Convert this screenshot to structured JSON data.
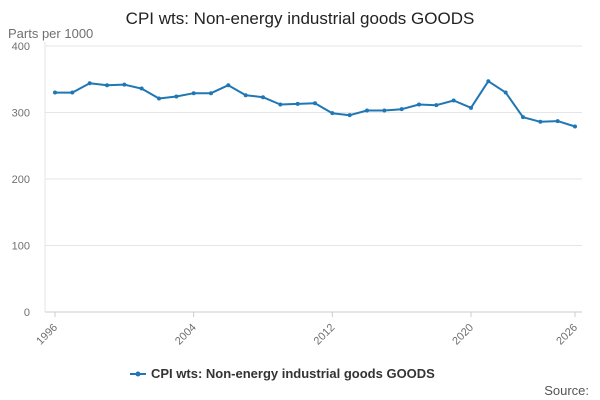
{
  "chart_data": {
    "type": "line",
    "title": "CPI wts: Non-energy industrial goods GOODS",
    "ylabel": "Parts per 1000",
    "xlabel": "",
    "xlim": [
      1996,
      2026
    ],
    "ylim": [
      0,
      400
    ],
    "y_ticks": [
      0,
      100,
      200,
      300,
      400
    ],
    "x_ticks": [
      1996,
      2004,
      2012,
      2020,
      2026
    ],
    "grid": true,
    "legend_position": "bottom-center",
    "source_label": "Source:",
    "colors": {
      "series": "#1f77b4",
      "grid": "#e6e6e6",
      "axis": "#cccccc"
    },
    "series": [
      {
        "name": "CPI wts: Non-energy industrial goods GOODS",
        "x": [
          1996,
          1997,
          1998,
          1999,
          2000,
          2001,
          2002,
          2003,
          2004,
          2005,
          2006,
          2007,
          2008,
          2009,
          2010,
          2011,
          2012,
          2013,
          2014,
          2015,
          2016,
          2017,
          2018,
          2019,
          2020,
          2021,
          2022,
          2023,
          2024,
          2025,
          2026
        ],
        "values": [
          330,
          330,
          344,
          341,
          342,
          336,
          321,
          324,
          329,
          329,
          341,
          326,
          323,
          312,
          313,
          314,
          299,
          296,
          303,
          303,
          305,
          312,
          311,
          318,
          307,
          347,
          330,
          293,
          286,
          287,
          279
        ]
      }
    ]
  }
}
